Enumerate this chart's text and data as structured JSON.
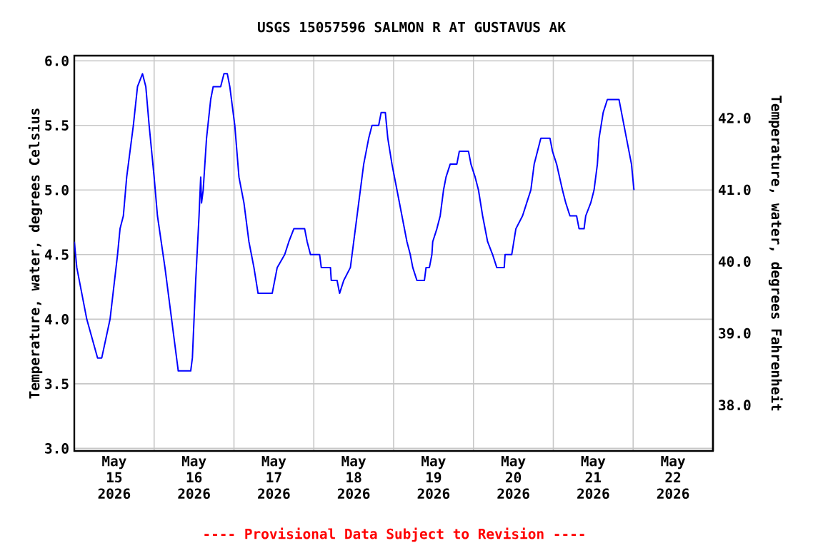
{
  "chart_data": {
    "type": "line",
    "title": "USGS 15057596 SALMON R AT GUSTAVUS AK",
    "ylabel": "Temperature, water, degrees Celsius",
    "y2label": "Temperature, water, degrees Fahrenheit",
    "annotations": [
      "---- Provisional Data Subject to Revision ----"
    ],
    "xlim": [
      "2026-05-15T00:00",
      "2026-05-23T00:00"
    ],
    "xticks": [
      {
        "value": "2026-05-15T12:00",
        "label": "May 15 2026"
      },
      {
        "value": "2026-05-16T12:00",
        "label": "May 16 2026"
      },
      {
        "value": "2026-05-17T12:00",
        "label": "May 17 2026"
      },
      {
        "value": "2026-05-18T12:00",
        "label": "May 18 2026"
      },
      {
        "value": "2026-05-19T12:00",
        "label": "May 19 2026"
      },
      {
        "value": "2026-05-20T12:00",
        "label": "May 20 2026"
      },
      {
        "value": "2026-05-21T12:00",
        "label": "May 21 2026"
      },
      {
        "value": "2026-05-22T12:00",
        "label": "May 22 2026"
      },
      {
        "value": "2026-05-16T00:00",
        "label": null
      },
      {
        "value": "2026-05-17T00:00",
        "label": null
      },
      {
        "value": "2026-05-18T00:00",
        "label": null
      },
      {
        "value": "2026-05-19T00:00",
        "label": null
      },
      {
        "value": "2026-05-20T00:00",
        "label": null
      },
      {
        "value": "2026-05-21T00:00",
        "label": null
      },
      {
        "value": "2026-05-22T00:00",
        "label": null
      }
    ],
    "ylim": [
      2.98,
      6.04
    ],
    "yticks": [
      {
        "value": 3,
        "label": "3.0"
      },
      {
        "value": 3.5,
        "label": "3.5"
      },
      {
        "value": 4,
        "label": "4.0"
      },
      {
        "value": 4.5,
        "label": "4.5"
      },
      {
        "value": 5,
        "label": "5.0"
      },
      {
        "value": 5.5,
        "label": "5.5"
      },
      {
        "value": 6,
        "label": "6.0"
      }
    ],
    "y2lim": [
      37.36,
      42.87
    ],
    "y2ticks": [
      {
        "value": 38,
        "label": "38.0"
      },
      {
        "value": 39,
        "label": "39.0"
      },
      {
        "value": 40,
        "label": "40.0"
      },
      {
        "value": 41,
        "label": "41.0"
      },
      {
        "value": 42,
        "label": "42.0"
      }
    ],
    "grid": true,
    "x": [
      "2026-05-15T00:00",
      "2026-05-15T00:45",
      "2026-05-15T03:45",
      "2026-05-15T07:00",
      "2026-05-15T08:15",
      "2026-05-15T10:45",
      "2026-05-15T13:00",
      "2026-05-15T13:45",
      "2026-05-15T14:45",
      "2026-05-15T15:45",
      "2026-05-15T17:45",
      "2026-05-15T19:00",
      "2026-05-15T20:30",
      "2026-05-15T21:30",
      "2026-05-15T22:30",
      "2026-05-16T00:00",
      "2026-05-16T01:00",
      "2026-05-16T03:15",
      "2026-05-16T04:45",
      "2026-05-16T06:15",
      "2026-05-16T07:15",
      "2026-05-16T11:00",
      "2026-05-16T11:30",
      "2026-05-16T12:30",
      "2026-05-16T13:30",
      "2026-05-16T14:00",
      "2026-05-16T14:15",
      "2026-05-16T14:45",
      "2026-05-16T15:45",
      "2026-05-16T17:00",
      "2026-05-16T17:45",
      "2026-05-16T20:00",
      "2026-05-16T21:00",
      "2026-05-16T22:00",
      "2026-05-16T22:45",
      "2026-05-17T00:15",
      "2026-05-17T01:30",
      "2026-05-17T03:00",
      "2026-05-17T04:30",
      "2026-05-17T06:00",
      "2026-05-17T07:15",
      "2026-05-17T11:30",
      "2026-05-17T13:00",
      "2026-05-17T15:15",
      "2026-05-17T16:30",
      "2026-05-17T18:00",
      "2026-05-17T21:15",
      "2026-05-17T22:00",
      "2026-05-17T23:00",
      "2026-05-18T01:45",
      "2026-05-18T02:15",
      "2026-05-18T05:00",
      "2026-05-18T05:15",
      "2026-05-18T07:00",
      "2026-05-18T07:45",
      "2026-05-18T09:00",
      "2026-05-18T11:00",
      "2026-05-18T12:00",
      "2026-05-18T13:30",
      "2026-05-18T15:00",
      "2026-05-18T16:30",
      "2026-05-18T17:30",
      "2026-05-18T19:30",
      "2026-05-18T20:15",
      "2026-05-18T21:30",
      "2026-05-18T22:15",
      "2026-05-18T23:30",
      "2026-05-19T01:00",
      "2026-05-19T02:30",
      "2026-05-19T03:15",
      "2026-05-19T04:00",
      "2026-05-19T05:00",
      "2026-05-19T05:45",
      "2026-05-19T07:00",
      "2026-05-19T09:15",
      "2026-05-19T09:45",
      "2026-05-19T10:45",
      "2026-05-19T11:30",
      "2026-05-19T11:45",
      "2026-05-19T13:00",
      "2026-05-19T14:00",
      "2026-05-19T15:00",
      "2026-05-19T15:45",
      "2026-05-19T17:00",
      "2026-05-19T19:00",
      "2026-05-19T19:45",
      "2026-05-19T22:30",
      "2026-05-19T23:15",
      "2026-05-20T00:30",
      "2026-05-20T01:30",
      "2026-05-20T02:45",
      "2026-05-20T04:15",
      "2026-05-20T05:45",
      "2026-05-20T07:00",
      "2026-05-20T09:15",
      "2026-05-20T09:30",
      "2026-05-20T11:30",
      "2026-05-20T12:45",
      "2026-05-20T14:45",
      "2026-05-20T16:00",
      "2026-05-20T17:15",
      "2026-05-20T18:15",
      "2026-05-20T19:15",
      "2026-05-20T20:15",
      "2026-05-20T23:00",
      "2026-05-20T23:45",
      "2026-05-21T01:00",
      "2026-05-21T02:45",
      "2026-05-21T03:45",
      "2026-05-21T05:00",
      "2026-05-21T07:00",
      "2026-05-21T07:45",
      "2026-05-21T09:15",
      "2026-05-21T09:45",
      "2026-05-21T11:15",
      "2026-05-21T12:15",
      "2026-05-21T13:15",
      "2026-05-21T13:45",
      "2026-05-21T15:00",
      "2026-05-21T16:15",
      "2026-05-21T19:45",
      "2026-05-21T20:30",
      "2026-05-21T22:00",
      "2026-05-21T23:30",
      "2026-05-22T00:15"
    ],
    "series": [
      {
        "color": "#0000ff",
        "values": [
          4.6,
          4.4,
          4.0,
          3.7,
          3.7,
          4.0,
          4.5,
          4.7,
          4.8,
          5.1,
          5.5,
          5.8,
          5.9,
          5.8,
          5.5,
          5.1,
          4.8,
          4.4,
          4.1,
          3.8,
          3.6,
          3.6,
          3.7,
          4.3,
          4.8,
          5.1,
          4.9,
          5.0,
          5.4,
          5.7,
          5.8,
          5.8,
          5.9,
          5.9,
          5.8,
          5.5,
          5.1,
          4.9,
          4.6,
          4.4,
          4.2,
          4.2,
          4.4,
          4.5,
          4.6,
          4.7,
          4.7,
          4.6,
          4.5,
          4.5,
          4.4,
          4.4,
          4.3,
          4.3,
          4.2,
          4.3,
          4.4,
          4.6,
          4.9,
          5.2,
          5.4,
          5.5,
          5.5,
          5.6,
          5.6,
          5.4,
          5.2,
          5.0,
          4.8,
          4.7,
          4.6,
          4.5,
          4.4,
          4.3,
          4.3,
          4.4,
          4.4,
          4.5,
          4.6,
          4.7,
          4.8,
          5.0,
          5.1,
          5.2,
          5.2,
          5.3,
          5.3,
          5.2,
          5.1,
          5.0,
          4.8,
          4.6,
          4.5,
          4.4,
          4.4,
          4.5,
          4.5,
          4.7,
          4.8,
          4.9,
          5.0,
          5.2,
          5.3,
          5.4,
          5.4,
          5.3,
          5.2,
          5.0,
          4.9,
          4.8,
          4.8,
          4.7,
          4.7,
          4.8,
          4.9,
          5.0,
          5.2,
          5.4,
          5.6,
          5.7,
          5.7,
          5.6,
          5.4,
          5.2,
          5.0
        ]
      }
    ]
  }
}
